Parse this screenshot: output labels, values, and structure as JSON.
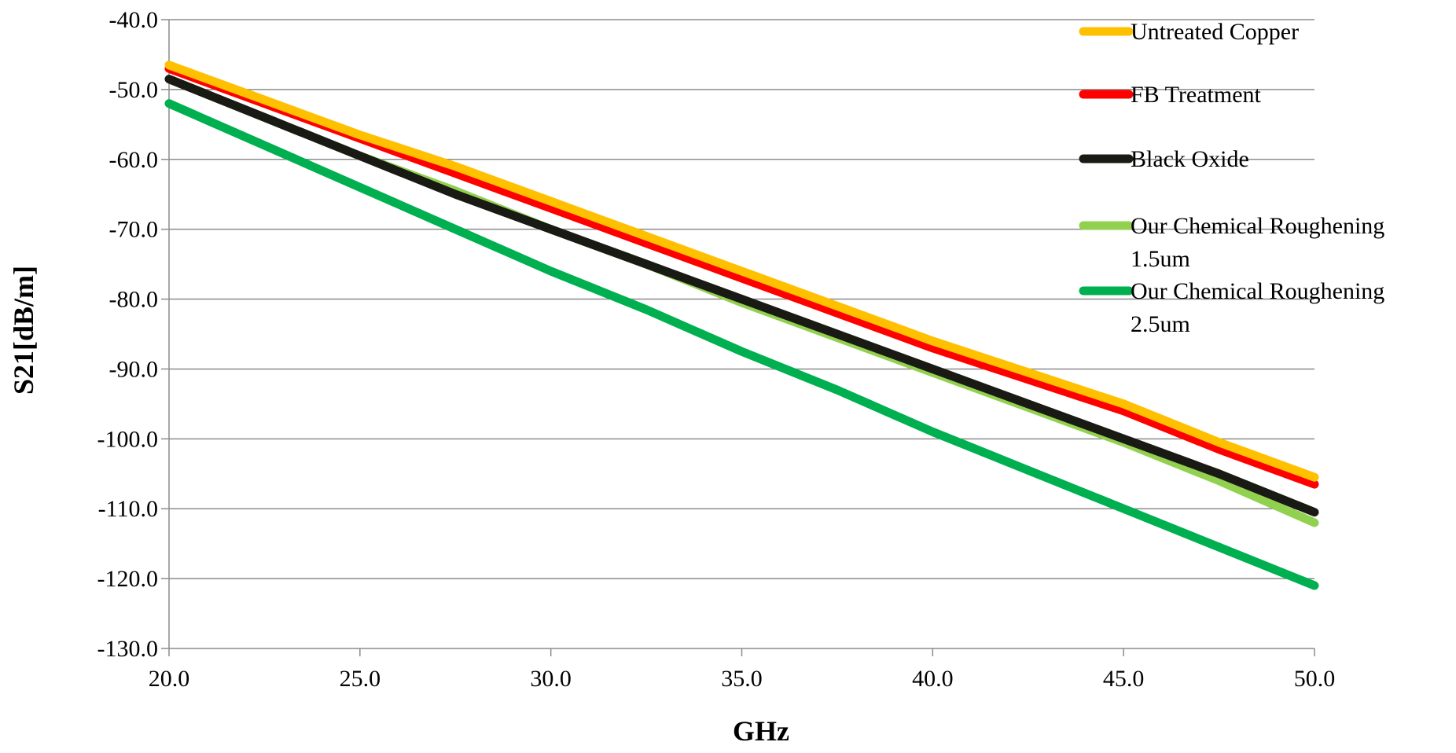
{
  "chart_data": {
    "type": "line",
    "title": "",
    "xlabel": "GHz",
    "ylabel": "S21[dB/m]",
    "xlim": [
      20,
      50
    ],
    "ylim": [
      -130,
      -40
    ],
    "x_ticks": [
      20,
      25,
      30,
      35,
      40,
      45,
      50
    ],
    "x_tick_labels": [
      "20.0",
      "25.0",
      "30.0",
      "35.0",
      "40.0",
      "45.0",
      "50.0"
    ],
    "y_ticks": [
      -40,
      -50,
      -60,
      -70,
      -80,
      -90,
      -100,
      -110,
      -120,
      -130
    ],
    "y_tick_labels": [
      "-40.0",
      "-50.0",
      "-60.0",
      "-70.0",
      "-80.0",
      "-90.0",
      "-100.0",
      "-110.0",
      "-120.0",
      "-130.0"
    ],
    "grid": "horizontal",
    "legend_position": "top-right",
    "x": [
      20,
      22.5,
      25,
      27.5,
      30,
      32.5,
      35,
      37.5,
      40,
      42.5,
      45,
      47.5,
      50
    ],
    "series": [
      {
        "name": "Untreated Copper",
        "color": "#FFC000",
        "values": [
          -46.5,
          -51.5,
          -56.5,
          -61.0,
          -66.0,
          -71.0,
          -76.0,
          -81.0,
          -86.0,
          -90.5,
          -95.0,
          -100.5,
          -105.5
        ]
      },
      {
        "name": "FB Treatment",
        "color": "#FF0000",
        "values": [
          -47.0,
          -52.0,
          -57.0,
          -62.0,
          -67.0,
          -72.0,
          -77.0,
          -82.0,
          -87.0,
          -91.5,
          -96.0,
          -101.5,
          -106.5
        ]
      },
      {
        "name": "Black Oxide",
        "color": "#1A1A14",
        "values": [
          -48.5,
          -54.0,
          -59.5,
          -65.0,
          -70.0,
          -75.0,
          -80.0,
          -85.0,
          -90.0,
          -95.0,
          -100.0,
          -105.0,
          -110.5
        ]
      },
      {
        "name": "Our Chemical Roughening\n1.5um",
        "color": "#92D050",
        "values": [
          -48.5,
          -54.0,
          -59.5,
          -64.5,
          -70.0,
          -75.0,
          -80.5,
          -85.5,
          -90.5,
          -95.5,
          -100.5,
          -106.0,
          -112.0
        ]
      },
      {
        "name": "Our Chemical Roughening\n2.5um",
        "color": "#00B050",
        "values": [
          -52.0,
          -58.0,
          -64.0,
          -70.0,
          -76.0,
          -81.5,
          -87.5,
          -93.0,
          -99.0,
          -104.5,
          -110.0,
          -115.5,
          -121.0
        ]
      }
    ]
  }
}
